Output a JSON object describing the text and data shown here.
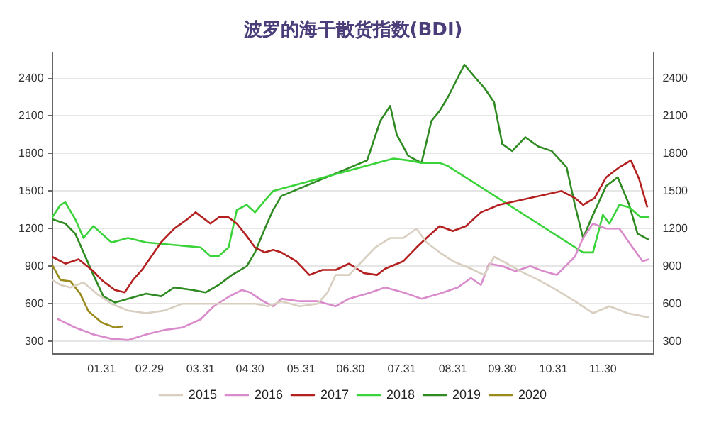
{
  "chart_data": {
    "type": "line",
    "title": "波罗的海干散货指数(BDI)",
    "xlim": [
      "--01-01",
      "--12-31"
    ],
    "xticks": [
      {
        "value": "--01-31",
        "label": "01.31"
      },
      {
        "value": "--02-29",
        "label": "02.29"
      },
      {
        "value": "--03-31",
        "label": "03.31"
      },
      {
        "value": "--04-30",
        "label": "04.30"
      },
      {
        "value": "--05-31",
        "label": "05.31"
      },
      {
        "value": "--06-30",
        "label": "06.30"
      },
      {
        "value": "--07-31",
        "label": "07.31"
      },
      {
        "value": "--08-31",
        "label": "08.31"
      },
      {
        "value": "--09-30",
        "label": "09.30"
      },
      {
        "value": "--10-31",
        "label": "10.31"
      },
      {
        "value": "--11-30",
        "label": "11.30"
      }
    ],
    "ylim": [
      200,
      2600
    ],
    "yticks": [
      300,
      600,
      900,
      1200,
      1500,
      1800,
      2100,
      2400
    ],
    "y2lim": [
      200,
      2600
    ],
    "y2ticks": [
      300,
      600,
      900,
      1200,
      1500,
      1800,
      2100,
      2400
    ],
    "grid": "y",
    "legend": "bottom",
    "series": [
      {
        "name": "2015",
        "color": "#d8cfc0",
        "x": [
          "--01-01",
          "--01-06",
          "--01-12",
          "--01-20",
          "--01-28",
          "--02-06",
          "--02-16",
          "--02-27",
          "--03-09",
          "--03-20",
          "--03-31",
          "--04-11",
          "--04-22",
          "--05-03",
          "--05-11",
          "--05-19",
          "--05-30",
          "--06-10",
          "--06-16",
          "--06-21",
          "--06-29",
          "--07-15",
          "--07-24",
          "--08-01",
          "--08-09",
          "--08-15",
          "--08-23",
          "--08-31",
          "--09-11",
          "--09-19",
          "--09-25",
          "--10-03",
          "--10-11",
          "--10-22",
          "--11-02",
          "--11-13",
          "--11-24",
          "--12-04",
          "--12-15",
          "--12-28"
        ],
        "values": [
          790,
          750,
          730,
          770,
          680,
          600,
          545,
          525,
          545,
          600,
          600,
          600,
          600,
          600,
          580,
          620,
          580,
          600,
          690,
          830,
          830,
          1050,
          1125,
          1125,
          1200,
          1090,
          1010,
          940,
          880,
          830,
          975,
          920,
          860,
          790,
          710,
          620,
          525,
          580,
          525,
          490
        ]
      },
      {
        "name": "2016",
        "color": "#d98bcb",
        "x": [
          "--01-04",
          "--01-15",
          "--01-26",
          "--02-06",
          "--02-16",
          "--02-27",
          "--03-09",
          "--03-20",
          "--03-31",
          "--04-08",
          "--04-17",
          "--04-25",
          "--04-30",
          "--05-08",
          "--05-14",
          "--05-19",
          "--05-30",
          "--06-10",
          "--06-21",
          "--06-29",
          "--07-10",
          "--07-21",
          "--08-01",
          "--08-12",
          "--08-23",
          "--09-03",
          "--09-11",
          "--09-17",
          "--09-22",
          "--09-30",
          "--10-08",
          "--10-17",
          "--10-25",
          "--11-02",
          "--11-13",
          "--11-18",
          "--11-24",
          "--12-02",
          "--12-10",
          "--12-18",
          "--12-24",
          "--12-28"
        ],
        "values": [
          480,
          410,
          355,
          320,
          310,
          355,
          390,
          410,
          475,
          580,
          655,
          710,
          690,
          620,
          580,
          640,
          620,
          620,
          580,
          640,
          680,
          730,
          690,
          640,
          680,
          730,
          805,
          750,
          920,
          900,
          860,
          900,
          860,
          830,
          975,
          1125,
          1240,
          1200,
          1200,
          1050,
          940,
          955
        ]
      },
      {
        "name": "2017",
        "color": "#b3201f",
        "x": [
          "--01-01",
          "--01-09",
          "--01-17",
          "--01-26",
          "--01-31",
          "--02-08",
          "--02-14",
          "--02-19",
          "--02-25",
          "--03-01",
          "--03-07",
          "--03-15",
          "--03-23",
          "--03-28",
          "--04-06",
          "--04-11",
          "--04-17",
          "--04-22",
          "--04-28",
          "--05-03",
          "--05-09",
          "--05-14",
          "--05-19",
          "--05-28",
          "--06-05",
          "--06-13",
          "--06-21",
          "--06-29",
          "--07-08",
          "--07-16",
          "--07-21",
          "--08-01",
          "--08-09",
          "--08-15",
          "--08-23",
          "--08-31",
          "--09-08",
          "--09-17",
          "--09-28",
          "--11-05",
          "--11-13",
          "--11-18",
          "--11-25",
          "--12-02",
          "--12-10",
          "--12-17",
          "--12-22",
          "--12-27"
        ],
        "values": [
          975,
          920,
          955,
          860,
          790,
          710,
          690,
          790,
          880,
          975,
          1090,
          1200,
          1275,
          1330,
          1240,
          1290,
          1290,
          1240,
          1140,
          1050,
          1010,
          1030,
          1010,
          940,
          830,
          870,
          870,
          920,
          845,
          830,
          880,
          940,
          1050,
          1125,
          1220,
          1180,
          1220,
          1330,
          1390,
          1500,
          1445,
          1390,
          1445,
          1610,
          1690,
          1745,
          1595,
          1370
        ]
      },
      {
        "name": "2018",
        "color": "#3ad33a",
        "x": [
          "--01-01",
          "--01-06",
          "--01-09",
          "--01-15",
          "--01-20",
          "--01-26",
          "--01-31",
          "--02-06",
          "--02-16",
          "--02-27",
          "--03-31",
          "--04-06",
          "--04-11",
          "--04-17",
          "--04-22",
          "--04-28",
          "--05-03",
          "--05-09",
          "--05-14",
          "--07-26",
          "--08-04",
          "--08-12",
          "--08-23",
          "--08-28",
          "--11-18",
          "--11-24",
          "--11-30",
          "--12-04",
          "--12-10",
          "--12-16",
          "--12-23",
          "--12-28"
        ],
        "values": [
          1290,
          1390,
          1410,
          1275,
          1125,
          1220,
          1160,
          1090,
          1125,
          1090,
          1050,
          980,
          980,
          1050,
          1350,
          1390,
          1330,
          1425,
          1500,
          1760,
          1745,
          1725,
          1725,
          1700,
          1010,
          1010,
          1310,
          1240,
          1390,
          1370,
          1290,
          1290
        ]
      },
      {
        "name": "2019",
        "color": "#2f8a22",
        "x": [
          "--01-01",
          "--01-09",
          "--01-15",
          "--01-20",
          "--01-26",
          "--02-01",
          "--02-08",
          "--02-16",
          "--02-27",
          "--03-07",
          "--03-15",
          "--03-26",
          "--04-03",
          "--04-11",
          "--04-19",
          "--04-28",
          "--05-03",
          "--05-09",
          "--05-14",
          "--05-19",
          "--07-10",
          "--07-18",
          "--07-24",
          "--07-28",
          "--08-04",
          "--08-12",
          "--08-18",
          "--08-23",
          "--08-28",
          "--09-07",
          "--09-14",
          "--09-19",
          "--09-25",
          "--09-30",
          "--10-06",
          "--10-14",
          "--10-22",
          "--10-30",
          "--11-08",
          "--11-13",
          "--11-18",
          "--11-24",
          "--12-02",
          "--12-09",
          "--12-16",
          "--12-21",
          "--12-28"
        ],
        "values": [
          1275,
          1240,
          1160,
          1010,
          830,
          660,
          610,
          640,
          680,
          660,
          730,
          710,
          690,
          750,
          830,
          900,
          1010,
          1200,
          1350,
          1460,
          1745,
          2060,
          2180,
          1950,
          1780,
          1725,
          2060,
          2140,
          2250,
          2510,
          2400,
          2325,
          2210,
          1875,
          1820,
          1930,
          1855,
          1820,
          1690,
          1390,
          1125,
          1310,
          1540,
          1610,
          1390,
          1160,
          1110
        ]
      },
      {
        "name": "2020",
        "color": "#9a8b1c",
        "x": [
          "--01-01",
          "--01-06",
          "--01-12",
          "--01-18",
          "--01-23",
          "--01-31",
          "--02-08",
          "--02-13"
        ],
        "values": [
          910,
          790,
          780,
          680,
          540,
          450,
          410,
          420
        ]
      }
    ]
  }
}
